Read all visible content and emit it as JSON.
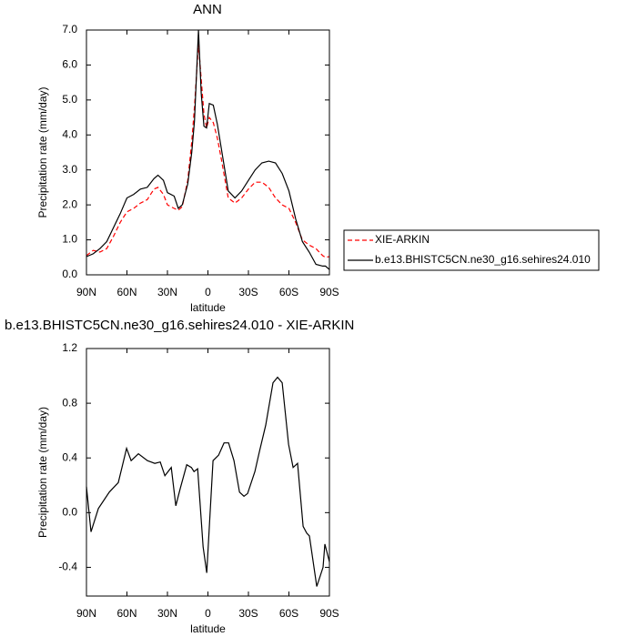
{
  "chart_data": [
    {
      "type": "line",
      "title": "ANN",
      "xlabel": "latitude",
      "ylabel": "Precipitation rate (mm/day)",
      "x": [
        90,
        85,
        80,
        75,
        70,
        65,
        60,
        55,
        50,
        45,
        40,
        37,
        33,
        30,
        25,
        22,
        19,
        15,
        12,
        10,
        7,
        5,
        3,
        1,
        -1,
        -4,
        -7,
        -10,
        -15,
        -20,
        -25,
        -30,
        -35,
        -40,
        -45,
        -50,
        -55,
        -60,
        -65,
        -70,
        -75,
        -80,
        -85,
        -87,
        -90
      ],
      "xlim": [
        90,
        -90
      ],
      "xticks": [
        {
          "value": 90,
          "label": "90N"
        },
        {
          "value": 60,
          "label": "60N"
        },
        {
          "value": 30,
          "label": "30N"
        },
        0,
        {
          "value": -30,
          "label": "30S"
        },
        {
          "value": -60,
          "label": "60S"
        },
        {
          "value": -90,
          "label": "90S"
        }
      ],
      "ylim": [
        0,
        7
      ],
      "yticks": [
        {
          "value": 0,
          "label": "0.0"
        },
        {
          "value": 1,
          "label": "1.0"
        },
        {
          "value": 2,
          "label": "2.0"
        },
        {
          "value": 3,
          "label": "3.0"
        },
        {
          "value": 4,
          "label": "4.0"
        },
        {
          "value": 5,
          "label": "5.0"
        },
        {
          "value": 6,
          "label": "6.0"
        },
        {
          "value": 7,
          "label": "7.0"
        }
      ],
      "series": [
        {
          "name": "XIE-ARKIN",
          "color": "#ff0000",
          "style": "dashed",
          "values": [
            0.55,
            0.7,
            0.65,
            0.75,
            1.1,
            1.5,
            1.8,
            1.9,
            2.05,
            2.15,
            2.45,
            2.5,
            2.3,
            2.0,
            1.9,
            1.85,
            1.95,
            2.7,
            3.8,
            4.8,
            6.6,
            5.6,
            4.6,
            4.2,
            4.5,
            4.35,
            3.9,
            3.3,
            2.2,
            2.05,
            2.2,
            2.45,
            2.65,
            2.65,
            2.5,
            2.2,
            2.0,
            1.9,
            1.5,
            1.0,
            0.85,
            0.75,
            0.55,
            0.5,
            0.52
          ]
        },
        {
          "name": "b.e13.BHISTC5CN.ne30_g16.sehires24.010",
          "color": "#000000",
          "style": "solid",
          "values": [
            0.52,
            0.6,
            0.75,
            0.95,
            1.35,
            1.75,
            2.2,
            2.3,
            2.45,
            2.5,
            2.75,
            2.85,
            2.7,
            2.35,
            2.25,
            1.9,
            2.0,
            2.6,
            3.5,
            4.4,
            7.0,
            5.2,
            4.25,
            4.2,
            4.9,
            4.85,
            4.3,
            3.6,
            2.4,
            2.2,
            2.4,
            2.7,
            3.0,
            3.2,
            3.25,
            3.2,
            2.9,
            2.4,
            1.6,
            0.95,
            0.65,
            0.3,
            0.25,
            0.25,
            0.15
          ]
        }
      ],
      "legend": "right"
    },
    {
      "type": "line",
      "title": "b.e13.BHISTC5CN.ne30_g16.sehires24.010 - XIE-ARKIN",
      "xlabel": "latitude",
      "ylabel": "Precipitation rate (mm/day)",
      "x": [
        90,
        86.6,
        81.2,
        73.1,
        66.4,
        60.3,
        56.9,
        51.5,
        44.8,
        39.4,
        35.3,
        31.9,
        27.2,
        23.8,
        20.4,
        15.7,
        12.3,
        10.3,
        7.6,
        3.6,
        0.9,
        -3.8,
        -7.9,
        -11.9,
        -15.3,
        -19.3,
        -23.4,
        -26.7,
        -29.4,
        -34.8,
        -38.2,
        -42.8,
        -48.2,
        -51.6,
        -55,
        -59.7,
        -63.1,
        -66.4,
        -70.5,
        -73.2,
        -75.2,
        -80.6,
        -85.3,
        -86.6,
        -90
      ],
      "xlim": [
        90,
        -90
      ],
      "xticks": [
        {
          "value": 90,
          "label": "90N"
        },
        {
          "value": 60,
          "label": "60N"
        },
        {
          "value": 30,
          "label": "30N"
        },
        0,
        {
          "value": -30,
          "label": "30S"
        },
        {
          "value": -60,
          "label": "60S"
        },
        {
          "value": -90,
          "label": "90S"
        }
      ],
      "ylim": [
        -0.61,
        1.2
      ],
      "yticks": [
        -0.4,
        {
          "value": 0,
          "label": "0.0"
        },
        0.4,
        0.8,
        1.2
      ],
      "series": [
        {
          "color": "#000000",
          "style": "solid",
          "values": [
            0.19,
            -0.14,
            0.03,
            0.15,
            0.22,
            0.47,
            0.38,
            0.43,
            0.38,
            0.36,
            0.37,
            0.27,
            0.33,
            0.05,
            0.18,
            0.35,
            0.33,
            0.3,
            0.32,
            -0.25,
            -0.44,
            0.38,
            0.42,
            0.51,
            0.51,
            0.38,
            0.15,
            0.12,
            0.14,
            0.3,
            0.45,
            0.64,
            0.95,
            0.99,
            0.95,
            0.5,
            0.33,
            0.36,
            -0.1,
            -0.15,
            -0.17,
            -0.54,
            -0.4,
            -0.23,
            -0.36
          ]
        }
      ]
    }
  ]
}
